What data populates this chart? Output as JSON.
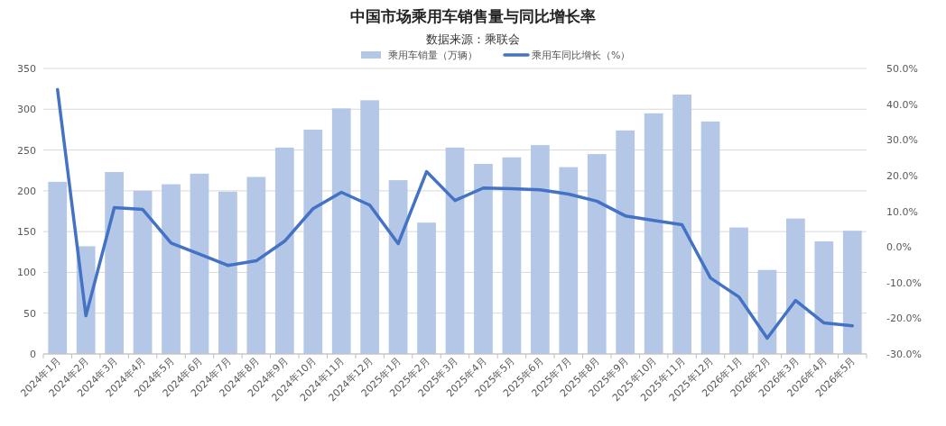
{
  "chart_data": {
    "type": "bar",
    "title": "中国市场乘用车销售量与同比增长率",
    "subtitle": "数据来源：乘联会",
    "categories": [
      "2024年1月",
      "2024年2月",
      "2024年3月",
      "2024年4月",
      "2024年5月",
      "2024年6月",
      "2024年7月",
      "2024年8月",
      "2024年9月",
      "2024年10月",
      "2024年11月",
      "2024年12月",
      "2025年1月",
      "2025年2月",
      "2025年3月",
      "2025年4月",
      "2025年5月",
      "2025年6月",
      "2025年7月",
      "2025年8月",
      "2025年9月",
      "2025年10月",
      "2025年11月",
      "2025年12月",
      "2026年1月",
      "2026年2月",
      "2026年3月",
      "2026年4月",
      "2026年5月"
    ],
    "series": [
      {
        "name": "乘用车销量（万辆）",
        "color": "#b4c7e7",
        "values": [
          211,
          132,
          223,
          200,
          208,
          221,
          199,
          217,
          253,
          275,
          301,
          311,
          213,
          161,
          253,
          233,
          241,
          256,
          229,
          245,
          274,
          295,
          318,
          285,
          155,
          103,
          166,
          138,
          151
        ]
      },
      {
        "name": "乘用车同比增长（%）",
        "type": "line",
        "axis": "y2",
        "color": "#4472c4",
        "values": [
          44.1,
          -19.3,
          11.0,
          10.5,
          1.1,
          -2.0,
          -5.2,
          -3.9,
          1.6,
          10.7,
          15.3,
          11.7,
          0.9,
          21.1,
          13.0,
          16.5,
          16.3,
          16.0,
          14.8,
          12.8,
          8.7,
          7.4,
          6.2,
          -8.7,
          -14.0,
          -25.6,
          -15.0,
          -21.3,
          -22.1
        ]
      }
    ],
    "ylim": [
      0,
      350
    ],
    "yticks": [
      0,
      50,
      100,
      150,
      200,
      250,
      300,
      350
    ],
    "y2lim": [
      -30,
      50
    ],
    "y2ticks": [
      {
        "value": -30,
        "label": "-30.0%"
      },
      {
        "value": -20,
        "label": "-20.0%"
      },
      {
        "value": -10,
        "label": "-10.0%"
      },
      {
        "value": 0,
        "label": "0.0%"
      },
      {
        "value": 10,
        "label": "10.0%"
      },
      {
        "value": 20,
        "label": "20.0%"
      },
      {
        "value": 30,
        "label": "30.0%"
      },
      {
        "value": 40,
        "label": "40.0%"
      },
      {
        "value": 50,
        "label": "50.0%"
      }
    ],
    "grid": "y",
    "legend": "top",
    "marker": "none",
    "line_style": "solid"
  }
}
